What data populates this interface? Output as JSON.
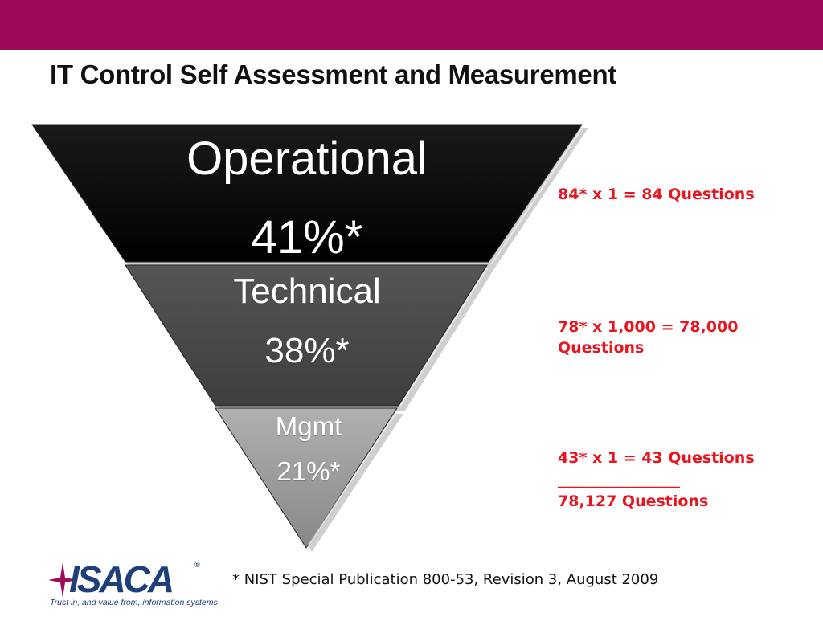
{
  "title": "IT Control Self Assessment and Measurement",
  "pyramid": {
    "tiers": [
      {
        "label": "Operational",
        "percent": "41%*",
        "fill": "#000000"
      },
      {
        "label": "Technical",
        "percent": "38%*",
        "fill": "#4a4a4a"
      },
      {
        "label": "Mgmt",
        "percent": "21%*",
        "fill": "#9a9a9a"
      }
    ]
  },
  "calculations": {
    "operational": "84* x 1 = 84 Questions",
    "technical": "78* x 1,000 = 78,000 Questions",
    "mgmt": "43* x 1 = 43 Questions",
    "divider": "________________",
    "total": "78,127 Questions"
  },
  "footnote": "* NIST Special Publication 800-53, Revision 3, August 2009",
  "logo": {
    "wordmark": "ISACA",
    "registered": "®",
    "tagline": "Trust in, and value from, information systems"
  },
  "colors": {
    "top_bar": "#9c0a58",
    "accent_text": "#e8141e",
    "logo_blue": "#1f3f7a"
  }
}
